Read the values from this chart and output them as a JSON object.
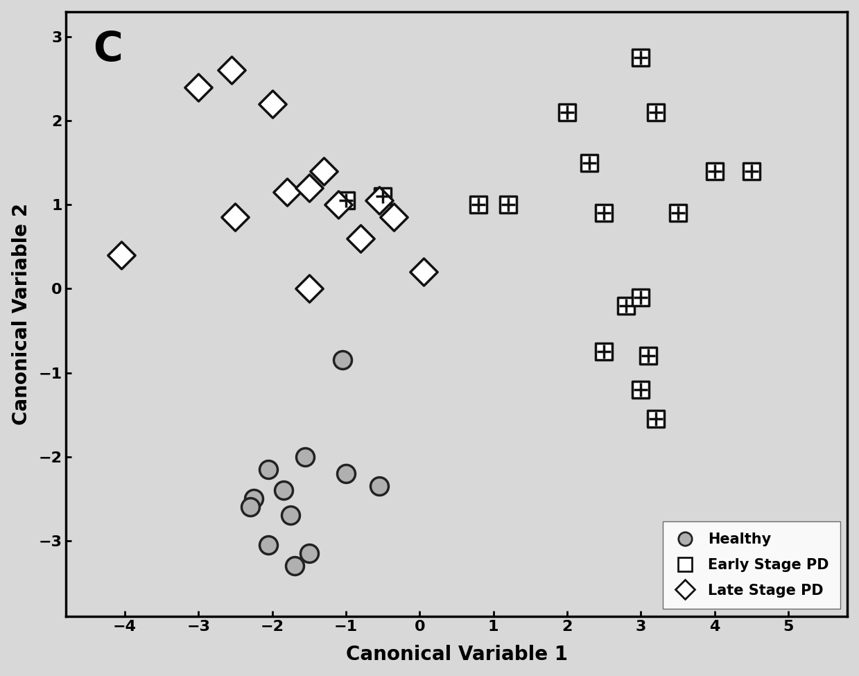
{
  "title_label": "C",
  "xlabel": "Canonical Variable 1",
  "ylabel": "Canonical Variable 2",
  "xlim": [
    -4.8,
    5.8
  ],
  "ylim": [
    -3.9,
    3.3
  ],
  "xticks": [
    -4,
    -3,
    -2,
    -1,
    0,
    1,
    2,
    3,
    4,
    5
  ],
  "yticks": [
    -3,
    -2,
    -1,
    0,
    1,
    2,
    3
  ],
  "healthy_x": [
    -1.05,
    -1.0,
    -1.55,
    -2.05,
    -2.25,
    -1.85,
    -2.3,
    -1.75,
    -2.05,
    -1.5,
    -0.55,
    -1.7
  ],
  "healthy_y": [
    -0.85,
    -2.2,
    -2.0,
    -2.15,
    -2.5,
    -2.4,
    -2.6,
    -2.7,
    -3.05,
    -3.15,
    -2.35,
    -3.3
  ],
  "early_x": [
    -1.0,
    -0.5,
    0.8,
    1.2,
    2.0,
    2.3,
    2.5,
    3.0,
    3.2,
    3.5,
    4.0,
    4.5,
    2.8,
    3.0,
    2.5,
    3.1,
    3.0,
    3.2
  ],
  "early_y": [
    1.05,
    1.1,
    1.0,
    1.0,
    2.1,
    1.5,
    0.9,
    2.75,
    2.1,
    0.9,
    1.4,
    1.4,
    -0.2,
    -0.1,
    -0.75,
    -0.8,
    -1.2,
    -1.55
  ],
  "late_x": [
    -4.05,
    -3.0,
    -2.55,
    -2.0,
    -1.8,
    -1.5,
    -1.3,
    -1.1,
    -0.55,
    -0.35,
    -0.8,
    0.05,
    -2.5,
    -1.5
  ],
  "late_y": [
    0.4,
    2.4,
    2.6,
    2.2,
    1.15,
    1.2,
    1.4,
    1.0,
    1.05,
    0.85,
    0.6,
    0.2,
    0.85,
    0.0
  ],
  "background_color": "#d8d8d8",
  "axis_bg_color": "#d8d8d8",
  "legend_fontsize": 15,
  "axis_label_fontsize": 20,
  "tick_fontsize": 16,
  "marker_size_circle": 350,
  "marker_size_square": 280,
  "marker_size_diamond": 400,
  "lw": 2.5
}
